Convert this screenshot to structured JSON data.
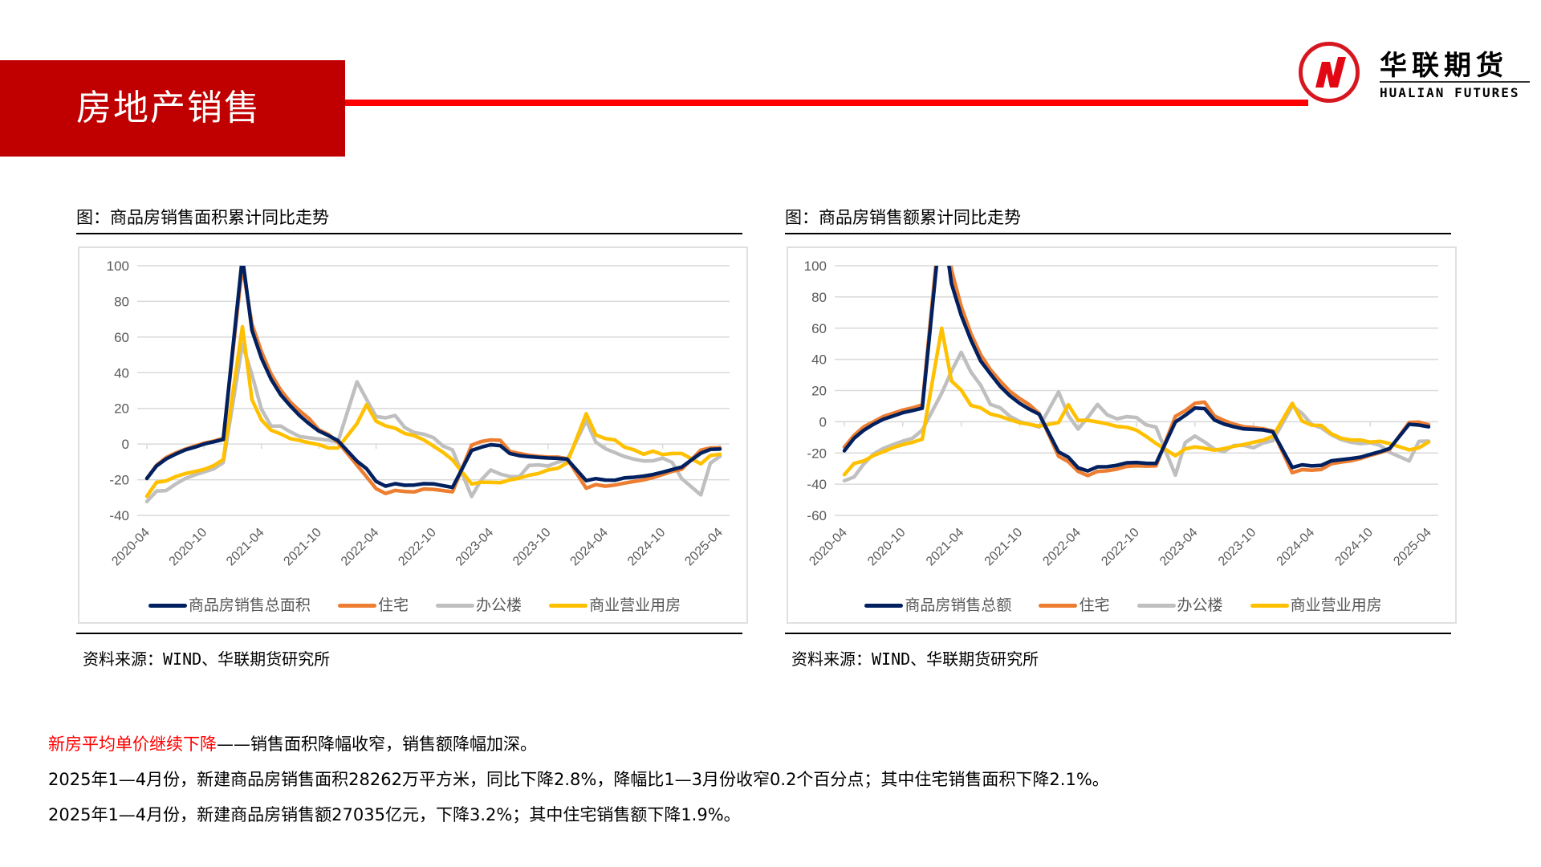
{
  "header": {
    "title": "房地产销售",
    "brand_color": "#c00000",
    "line_color": "#ff0000",
    "logo": {
      "cn": "华联期货",
      "en": "HUALIAN FUTURES",
      "mark": "N-logo",
      "mark_color": "#d7171f"
    }
  },
  "panels": [
    {
      "title": "图：商品房销售面积累计同比走势",
      "source": "资料来源：WIND、华联期货研究所",
      "legend": [
        "商品房销售总面积",
        "住宅",
        "办公楼",
        "商业营业用房"
      ]
    },
    {
      "title": "图：商品房销售额累计同比走势",
      "source": "资料来源：WIND、华联期货研究所",
      "legend": [
        "商品房销售总额",
        "住宅",
        "办公楼",
        "商业营业用房"
      ]
    }
  ],
  "series_colors": [
    "#002060",
    "#ed7d31",
    "#bfbfbf",
    "#ffc000"
  ],
  "commentary": {
    "headline_red": "新房平均单价继续下降",
    "headline_rest": "——销售面积降幅收窄，销售额降幅加深。",
    "line2": "2025年1—4月份，新建商品房销售面积28262万平方米，同比下降2.8%，降幅比1—3月份收窄0.2个百分点；其中住宅销售面积下降2.1%。",
    "line3": "2025年1—4月份，新建商品房销售额27035亿元，下降3.2%；其中住宅销售额下降1.9%。"
  },
  "chart_data": [
    {
      "type": "line",
      "title": "图：商品房销售面积累计同比走势",
      "xlabel": "",
      "ylabel": "",
      "ylim": [
        -40,
        100
      ],
      "yticks": [
        100,
        80,
        60,
        40,
        20,
        0,
        -20,
        -40
      ],
      "grid": true,
      "legend_position": "bottom",
      "x_tick_labels": [
        "2020-04",
        "2020-10",
        "2021-04",
        "2021-10",
        "2022-04",
        "2022-10",
        "2023-04",
        "2023-10",
        "2024-04",
        "2024-10",
        "2025-04"
      ],
      "x": [
        "2020-04",
        "2020-05",
        "2020-06",
        "2020-07",
        "2020-08",
        "2020-09",
        "2020-10",
        "2020-11",
        "2020-12",
        "2021-02",
        "2021-03",
        "2021-04",
        "2021-05",
        "2021-06",
        "2021-07",
        "2021-08",
        "2021-09",
        "2021-10",
        "2021-11",
        "2021-12",
        "2022-02",
        "2022-03",
        "2022-04",
        "2022-05",
        "2022-06",
        "2022-07",
        "2022-08",
        "2022-09",
        "2022-10",
        "2022-11",
        "2022-12",
        "2023-02",
        "2023-03",
        "2023-04",
        "2023-05",
        "2023-06",
        "2023-07",
        "2023-08",
        "2023-09",
        "2023-10",
        "2023-11",
        "2023-12",
        "2024-02",
        "2024-03",
        "2024-04",
        "2024-05",
        "2024-06",
        "2024-07",
        "2024-08",
        "2024-09",
        "2024-10",
        "2024-11",
        "2024-12",
        "2025-02",
        "2025-03",
        "2025-04"
      ],
      "series": [
        {
          "name": "商品房销售总面积",
          "color": "#002060",
          "values": [
            -19.3,
            -12.3,
            -8.4,
            -5.7,
            -3.3,
            -1.8,
            0.0,
            1.3,
            2.6,
            104.9,
            63.8,
            48.1,
            36.4,
            27.7,
            21.5,
            15.9,
            11.3,
            7.3,
            4.8,
            1.9,
            -9.6,
            -13.8,
            -20.9,
            -23.6,
            -22.2,
            -23.1,
            -23.0,
            -22.2,
            -22.3,
            -23.3,
            -24.3,
            -3.6,
            -1.8,
            -0.4,
            -0.9,
            -5.3,
            -6.5,
            -7.1,
            -7.5,
            -7.8,
            -8.0,
            -8.5,
            -20.5,
            -19.4,
            -20.2,
            -20.3,
            -19.0,
            -18.6,
            -18.0,
            -17.1,
            -15.8,
            -14.3,
            -12.9,
            -5.1,
            -3.0,
            -2.8
          ]
        },
        {
          "name": "住宅",
          "color": "#ed7d31",
          "values": [
            -19.3,
            -11.9,
            -7.6,
            -5.0,
            -2.9,
            -1.1,
            0.5,
            1.7,
            3.2,
            100.0,
            67.3,
            51.8,
            39.3,
            30.4,
            23.6,
            18.6,
            14.2,
            8.0,
            5.4,
            1.1,
            -11.8,
            -18.4,
            -25.0,
            -27.7,
            -26.0,
            -26.6,
            -26.8,
            -25.2,
            -25.4,
            -26.1,
            -26.8,
            -0.6,
            1.4,
            2.3,
            2.1,
            -4.1,
            -5.3,
            -6.3,
            -6.9,
            -7.3,
            -7.3,
            -8.2,
            -24.8,
            -22.7,
            -23.6,
            -23.0,
            -21.9,
            -21.0,
            -20.1,
            -18.8,
            -17.1,
            -15.3,
            -14.1,
            -3.4,
            -2.2,
            -2.1
          ]
        },
        {
          "name": "办公楼",
          "color": "#bfbfbf",
          "values": [
            -32.2,
            -26.4,
            -26.1,
            -22.5,
            -19.4,
            -17.3,
            -15.6,
            -13.9,
            -10.4,
            56.0,
            38.9,
            19.5,
            10.1,
            10.1,
            6.9,
            4.2,
            3.5,
            2.8,
            2.2,
            1.2,
            34.9,
            25.0,
            15.4,
            14.7,
            16.0,
            9.3,
            6.4,
            5.5,
            3.6,
            -1.1,
            -3.3,
            -29.4,
            -20.2,
            -14.5,
            -16.8,
            -18.2,
            -18.3,
            -12.0,
            -11.7,
            -12.3,
            -10.2,
            -9.0,
            13.1,
            1.1,
            -2.6,
            -4.8,
            -7.0,
            -8.5,
            -9.5,
            -9.4,
            -7.9,
            -10.3,
            -19.4,
            -28.5,
            -10.7,
            -6.9
          ]
        },
        {
          "name": "商业营业用房",
          "color": "#ffc000",
          "values": [
            -29.3,
            -21.5,
            -20.7,
            -18.3,
            -16.6,
            -15.4,
            -14.2,
            -12.1,
            -8.7,
            65.8,
            24.9,
            13.5,
            7.8,
            5.7,
            3.1,
            2.0,
            0.7,
            -0.3,
            -2.2,
            -2.2,
            11.5,
            22.1,
            12.8,
            10.2,
            8.9,
            5.9,
            4.7,
            2.3,
            -1.1,
            -4.6,
            -8.9,
            -22.4,
            -21.4,
            -21.5,
            -21.7,
            -20.1,
            -19.1,
            -17.5,
            -16.5,
            -14.5,
            -13.6,
            -10.6,
            17.0,
            5.1,
            3.1,
            2.3,
            -1.7,
            -3.2,
            -5.7,
            -4.0,
            -5.9,
            -5.3,
            -5.3,
            -11.1,
            -6.4,
            -5.7
          ]
        }
      ]
    },
    {
      "type": "line",
      "title": "图：商品房销售额累计同比走势",
      "xlabel": "",
      "ylabel": "",
      "ylim": [
        -60,
        100
      ],
      "yticks": [
        100,
        80,
        60,
        40,
        20,
        0,
        -20,
        -40,
        -60
      ],
      "grid": true,
      "legend_position": "bottom",
      "x_tick_labels": [
        "2020-04",
        "2020-10",
        "2021-04",
        "2021-10",
        "2022-04",
        "2022-10",
        "2023-04",
        "2023-10",
        "2024-04",
        "2024-10",
        "2025-04"
      ],
      "x": [
        "2020-04",
        "2020-05",
        "2020-06",
        "2020-07",
        "2020-08",
        "2020-09",
        "2020-10",
        "2020-11",
        "2020-12",
        "2021-02",
        "2021-03",
        "2021-04",
        "2021-05",
        "2021-06",
        "2021-07",
        "2021-08",
        "2021-09",
        "2021-10",
        "2021-11",
        "2021-12",
        "2022-02",
        "2022-03",
        "2022-04",
        "2022-05",
        "2022-06",
        "2022-07",
        "2022-08",
        "2022-09",
        "2022-10",
        "2022-11",
        "2022-12",
        "2023-02",
        "2023-03",
        "2023-04",
        "2023-05",
        "2023-06",
        "2023-07",
        "2023-08",
        "2023-09",
        "2023-10",
        "2023-11",
        "2023-12",
        "2024-02",
        "2024-03",
        "2024-04",
        "2024-05",
        "2024-06",
        "2024-07",
        "2024-08",
        "2024-09",
        "2024-10",
        "2024-11",
        "2024-12",
        "2025-02",
        "2025-03",
        "2025-04"
      ],
      "series": [
        {
          "name": "商品房销售总额",
          "color": "#002060",
          "values": [
            -18.6,
            -10.6,
            -5.4,
            -1.6,
            1.6,
            3.7,
            5.8,
            7.2,
            8.7,
            133.4,
            88.5,
            68.2,
            52.4,
            38.9,
            30.7,
            22.8,
            16.6,
            11.8,
            8.0,
            4.8,
            -19.3,
            -22.7,
            -29.5,
            -31.5,
            -28.9,
            -28.8,
            -27.9,
            -26.3,
            -26.1,
            -26.6,
            -26.7,
            -0.1,
            4.1,
            8.8,
            8.4,
            1.1,
            -1.5,
            -3.2,
            -4.6,
            -4.9,
            -5.2,
            -6.5,
            -29.3,
            -27.6,
            -28.3,
            -27.9,
            -25.0,
            -24.3,
            -23.6,
            -22.7,
            -20.9,
            -19.2,
            -17.1,
            -1.6,
            -2.1,
            -3.2
          ]
        },
        {
          "name": "住宅",
          "color": "#ed7d31",
          "values": [
            -16.2,
            -8.7,
            -3.2,
            0.0,
            3.4,
            5.4,
            7.5,
            8.9,
            10.8,
            139.5,
            97.2,
            74.0,
            56.6,
            42.9,
            33.4,
            26.1,
            19.5,
            14.9,
            10.9,
            5.3,
            -22.1,
            -25.6,
            -31.8,
            -34.5,
            -31.8,
            -31.4,
            -30.3,
            -28.6,
            -28.2,
            -28.4,
            -28.3,
            3.5,
            7.1,
            11.8,
            12.6,
            3.7,
            0.8,
            -1.5,
            -3.2,
            -3.7,
            -4.5,
            -6.0,
            -32.7,
            -30.7,
            -31.1,
            -30.5,
            -26.9,
            -25.9,
            -25.0,
            -23.6,
            -21.6,
            -19.8,
            -17.6,
            -0.4,
            -0.2,
            -1.9
          ]
        },
        {
          "name": "办公楼",
          "color": "#bfbfbf",
          "values": [
            -37.8,
            -35.4,
            -27.0,
            -20.6,
            -17.1,
            -14.7,
            -12.4,
            -10.6,
            -5.3,
            18.3,
            32.4,
            44.5,
            31.9,
            23.4,
            11.1,
            9.0,
            3.5,
            0.2,
            -1.6,
            -3.4,
            19.1,
            4.1,
            -4.7,
            2.7,
            11.1,
            4.4,
            1.9,
            3.3,
            2.7,
            -2.0,
            -3.4,
            -34.2,
            -13.4,
            -9.1,
            -13.0,
            -17.5,
            -19.1,
            -15.2,
            -15.1,
            -16.7,
            -13.6,
            -12.1,
            10.1,
            5.4,
            -1.7,
            -4.0,
            -8.3,
            -11.4,
            -13.1,
            -14.0,
            -13.5,
            -15.1,
            -19.6,
            -25.1,
            -12.5,
            -12.4
          ]
        },
        {
          "name": "商业营业用房",
          "color": "#ffc000",
          "values": [
            -33.9,
            -26.7,
            -25.1,
            -21.6,
            -19.2,
            -16.6,
            -14.6,
            -13.2,
            -11.2,
            59.9,
            26.1,
            20.3,
            10.5,
            8.9,
            5.0,
            3.5,
            1.4,
            -0.6,
            -1.6,
            -2.8,
            -0.5,
            10.9,
            0.9,
            0.9,
            -0.1,
            -1.4,
            -3.0,
            -3.5,
            -5.4,
            -9.4,
            -13.9,
            -21.8,
            -17.4,
            -16.1,
            -17.0,
            -18.2,
            -17.2,
            -15.7,
            -14.6,
            -13.2,
            -11.8,
            -9.3,
            11.8,
            0.5,
            -2.2,
            -2.4,
            -7.7,
            -10.5,
            -11.7,
            -11.7,
            -13.1,
            -12.5,
            -14.0,
            -18.0,
            -16.7,
            -13.0
          ]
        }
      ]
    }
  ]
}
